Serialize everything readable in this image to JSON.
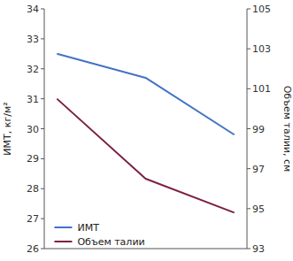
{
  "chart_data": {
    "type": "line",
    "x": [
      0,
      14,
      28
    ],
    "xlim": [
      -2,
      30
    ],
    "ylim": [
      26,
      34
    ],
    "yticks": [
      26,
      27,
      28,
      29,
      30,
      31,
      32,
      33,
      34
    ],
    "y2lim": [
      93,
      105
    ],
    "y2ticks": [
      93,
      95,
      97,
      99,
      101,
      103,
      105
    ],
    "ylabel": "ИМТ, кг/м²",
    "y2label": "Объем талии, см",
    "series": [
      {
        "name": "ИМТ",
        "color": "#4472C4",
        "values": [
          32.5,
          31.7,
          29.8
        ]
      },
      {
        "name": "Объем талии",
        "color": "#7B2045",
        "values": [
          100.5,
          96.5,
          94.8
        ],
        "axis": "y2"
      }
    ],
    "legend": "lower left",
    "tick_labels": "y"
  }
}
